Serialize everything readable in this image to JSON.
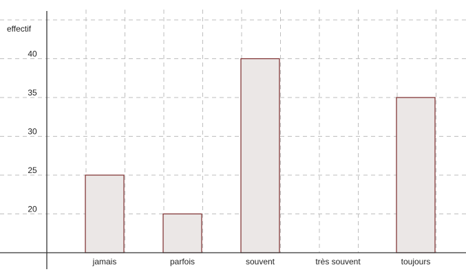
{
  "chart_data": {
    "type": "bar",
    "title": "",
    "xlabel": "",
    "ylabel": "effectif",
    "categories": [
      "jamais",
      "parfois",
      "souvent",
      "très souvent",
      "toujours"
    ],
    "values": [
      25,
      20,
      40,
      15,
      35
    ],
    "y_ticks": [
      20,
      25,
      30,
      35,
      40
    ],
    "ylim": [
      15,
      44
    ],
    "grid": true,
    "colors": {
      "bar_fill": "#ebe7e6",
      "bar_stroke": "#7a2a2a",
      "grid": "#bdbdbd",
      "axis": "#333333"
    }
  }
}
